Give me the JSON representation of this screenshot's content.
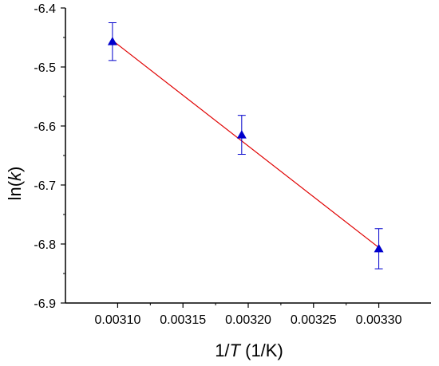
{
  "chart_data": {
    "type": "scatter",
    "title": "",
    "xlabel": {
      "prefix": "1/",
      "italic": "T",
      "suffix": " (1/K)"
    },
    "ylabel": {
      "prefix": "ln(",
      "italic": "k",
      "suffix": ")"
    },
    "xlim": [
      0.00306,
      0.00334
    ],
    "ylim": [
      -6.9,
      -6.4
    ],
    "x_ticks": [
      0.0031,
      0.00315,
      0.0032,
      0.00325,
      0.0033
    ],
    "x_tick_labels": [
      "0.00310",
      "0.00315",
      "0.00320",
      "0.00325",
      "0.00330"
    ],
    "y_ticks": [
      -6.9,
      -6.8,
      -6.7,
      -6.6,
      -6.5,
      -6.4
    ],
    "y_tick_labels": [
      "-6.9",
      "-6.8",
      "-6.7",
      "-6.6",
      "-6.5",
      "-6.4"
    ],
    "grid": false,
    "legend": "none",
    "series": [
      {
        "marker": "triangle",
        "color": "#0000cc",
        "points": [
          {
            "x": 0.003096,
            "y": -6.457,
            "err": 0.032
          },
          {
            "x": 0.003195,
            "y": -6.615,
            "err": 0.033
          },
          {
            "x": 0.0033,
            "y": -6.808,
            "err": 0.034
          }
        ]
      }
    ],
    "fit_line": {
      "color": "#e00000",
      "x": [
        0.003096,
        0.0033
      ],
      "y": [
        -6.455,
        -6.806
      ]
    },
    "axis_color": "#000000"
  }
}
